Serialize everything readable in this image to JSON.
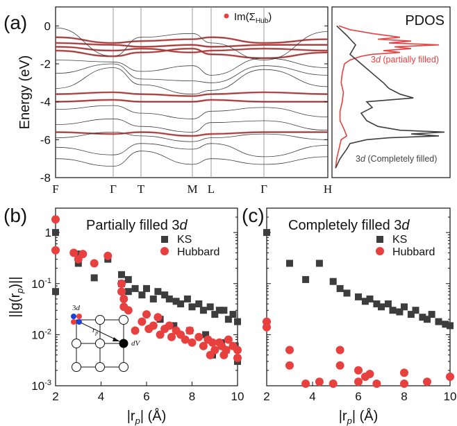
{
  "panel_labels": {
    "a": "(a)",
    "b": "(b)",
    "c": "(c)"
  },
  "colors": {
    "ks": "#3d3d3d",
    "hub": "#e8403e",
    "axis": "#111111",
    "grid": "#9a9a9a"
  },
  "chart_data": [
    {
      "type": "line",
      "id": "band-structure",
      "ylabel": "Energy (eV)",
      "ylim": [
        -8,
        1
      ],
      "yticks": [
        0,
        -2,
        -4,
        -6,
        -8
      ],
      "kpoints": [
        "F",
        "Γ",
        "T",
        "M",
        "L",
        "Γ",
        "H"
      ],
      "legend": {
        "label_main": "Im(Σ",
        "label_sub": "Hub",
        "label_end": ")"
      },
      "series": [
        {
          "values": [
            -0.6,
            -0.9,
            -0.8,
            -0.7,
            -0.6,
            -0.9,
            -0.7
          ],
          "hub": 1
        },
        {
          "values": [
            -0.9,
            -1.0,
            -1.1,
            -1.0,
            -1.1,
            -1.0,
            -1.0
          ],
          "hub": 1
        },
        {
          "values": [
            -1.1,
            -1.3,
            -1.2,
            -1.4,
            -1.3,
            -1.2,
            -1.3
          ],
          "hub": 1
        },
        {
          "values": [
            -1.3,
            -1.6,
            -1.4,
            -1.2,
            -1.5,
            -1.7,
            -1.4
          ],
          "hub": 1
        },
        {
          "values": [
            -0.1,
            -1.6,
            -0.6,
            -0.4,
            -0.9,
            -1.8,
            -0.3
          ],
          "hub": 0
        },
        {
          "values": [
            -1.8,
            -1.9,
            -2.4,
            -2.1,
            -2.6,
            -1.7,
            -2.2
          ],
          "hub": 0
        },
        {
          "values": [
            -2.5,
            -2.0,
            -2.8,
            -2.9,
            -3.0,
            -2.1,
            -2.6
          ],
          "hub": 0
        },
        {
          "values": [
            -3.3,
            -2.2,
            -3.1,
            -3.6,
            -3.4,
            -2.3,
            -3.2
          ],
          "hub": 0
        },
        {
          "values": [
            -3.6,
            -3.5,
            -3.6,
            -3.7,
            -3.6,
            -3.5,
            -3.6
          ],
          "hub": 1
        },
        {
          "values": [
            -4.0,
            -3.9,
            -4.0,
            -4.0,
            -3.9,
            -4.0,
            -4.0
          ],
          "hub": 1
        },
        {
          "values": [
            -4.4,
            -4.2,
            -4.6,
            -4.9,
            -4.5,
            -4.3,
            -4.8
          ],
          "hub": 0
        },
        {
          "values": [
            -5.2,
            -4.9,
            -5.3,
            -5.6,
            -5.1,
            -5.0,
            -5.5
          ],
          "hub": 0
        },
        {
          "values": [
            -5.6,
            -5.7,
            -5.6,
            -5.8,
            -5.7,
            -5.6,
            -5.6
          ],
          "hub": 1
        },
        {
          "values": [
            -5.9,
            -5.6,
            -5.8,
            -6.1,
            -5.9,
            -5.7,
            -6.0
          ],
          "hub": 0
        },
        {
          "values": [
            -6.4,
            -6.8,
            -6.2,
            -6.5,
            -6.2,
            -6.9,
            -6.3
          ],
          "hub": 0
        },
        {
          "values": [
            -7.0,
            -7.4,
            -6.6,
            -7.3,
            -7.0,
            -7.3,
            -6.9
          ],
          "hub": 0
        }
      ]
    },
    {
      "type": "line",
      "id": "pdos",
      "title": "PDOS",
      "ylim": [
        -8,
        1
      ],
      "annotations": {
        "partial": {
          "label": "3",
          "italic": "d",
          "rest": " (partially filled)"
        },
        "complete": {
          "label": "3",
          "italic": "d",
          "rest": " (Completely filled)"
        }
      },
      "series": [
        {
          "name": "partially filled",
          "energy": [
            0.0,
            -0.2,
            -0.4,
            -0.6,
            -0.7,
            -0.8,
            -0.9,
            -1.0,
            -1.1,
            -1.2,
            -1.3,
            -1.4,
            -1.5,
            -1.6,
            -1.8,
            -2.0,
            -2.5,
            -3.0,
            -3.5,
            -4.0,
            -4.5,
            -5.0,
            -5.5,
            -5.8,
            -6.0,
            -6.5,
            -7.0,
            -7.5
          ],
          "dos": [
            0.05,
            0.15,
            0.35,
            0.6,
            0.4,
            0.7,
            0.5,
            0.95,
            0.55,
            0.7,
            0.45,
            0.6,
            0.35,
            0.25,
            0.15,
            0.1,
            0.08,
            0.07,
            0.09,
            0.08,
            0.06,
            0.06,
            0.1,
            0.12,
            0.07,
            0.05,
            0.03,
            0.02
          ]
        },
        {
          "name": "completely filled",
          "energy": [
            0.0,
            -0.5,
            -1.0,
            -1.5,
            -2.0,
            -2.5,
            -3.0,
            -3.3,
            -3.6,
            -3.8,
            -4.0,
            -4.3,
            -4.6,
            -5.0,
            -5.3,
            -5.5,
            -5.6,
            -5.7,
            -5.8,
            -5.9,
            -6.0,
            -6.2,
            -6.5,
            -7.0,
            -7.5
          ],
          "dos": [
            0.03,
            0.12,
            0.2,
            0.15,
            0.25,
            0.35,
            0.45,
            0.5,
            0.6,
            0.72,
            0.3,
            0.35,
            0.25,
            0.3,
            0.4,
            0.6,
            1.0,
            0.7,
            0.95,
            0.5,
            0.3,
            0.15,
            0.12,
            0.06,
            0.02
          ]
        }
      ]
    },
    {
      "type": "scatter",
      "id": "partially-filled",
      "title": "Partially filled 3",
      "title_italic": "d",
      "ylabel_text": "||g(r",
      "ylabel_sub": "p",
      "ylabel_end": ")||",
      "xlabel": "|r",
      "xlabel_sub": "p",
      "xlabel_end": "| (Å)",
      "xlim": [
        2,
        10
      ],
      "xticks": [
        2,
        4,
        6,
        8,
        10
      ],
      "ylim": [
        0.001,
        3
      ],
      "yscale": "log",
      "ytick_labels": [
        {
          "v": 1,
          "base": "1",
          "exp": ""
        },
        {
          "v": 0.1,
          "base": "10",
          "exp": "-1"
        },
        {
          "v": 0.01,
          "base": "10",
          "exp": "-2"
        },
        {
          "v": 0.001,
          "base": "10",
          "exp": "-3"
        }
      ],
      "inset": {
        "orbital_label": "3",
        "orbital_italic": "d",
        "vector_label": "r",
        "vector_sub": "p",
        "volume_label": "dV"
      },
      "series": [
        {
          "name": "KS",
          "x": [
            2.0,
            2.0,
            3.0,
            3.0,
            3.7,
            4.3,
            4.9,
            4.9,
            5.2,
            5.2,
            5.5,
            5.8,
            6.0,
            6.3,
            6.5,
            6.8,
            7.0,
            7.3,
            7.5,
            7.8,
            8.0,
            8.3,
            8.5,
            8.8,
            9.0,
            9.2,
            9.4,
            9.6,
            9.8,
            10.0,
            6.6,
            7.2,
            7.9,
            8.6,
            9.3,
            9.9,
            8.9,
            9.5,
            10.0
          ],
          "y": [
            1.0,
            0.07,
            0.38,
            0.25,
            0.13,
            0.3,
            0.15,
            0.1,
            0.12,
            0.07,
            0.08,
            0.06,
            0.08,
            0.05,
            0.07,
            0.06,
            0.05,
            0.045,
            0.04,
            0.05,
            0.035,
            0.04,
            0.03,
            0.035,
            0.025,
            0.03,
            0.03,
            0.02,
            0.025,
            0.018,
            0.02,
            0.015,
            0.012,
            0.01,
            0.007,
            0.006,
            0.004,
            0.005,
            0.003
          ]
        },
        {
          "name": "Hubbard",
          "x": [
            2.0,
            2.0,
            2.8,
            3.0,
            3.2,
            3.7,
            4.3,
            4.9,
            4.9,
            5.0,
            5.0,
            5.2,
            5.5,
            5.8,
            6.0,
            6.1,
            6.3,
            6.5,
            6.6,
            6.8,
            7.0,
            7.1,
            7.3,
            7.5,
            7.7,
            7.9,
            8.0,
            8.3,
            8.5,
            8.7,
            8.9,
            9.0,
            9.2,
            9.3,
            9.5,
            9.6,
            9.8,
            10.0,
            10.0,
            9.4,
            8.8
          ],
          "y": [
            1.8,
            0.45,
            0.4,
            0.3,
            0.38,
            0.25,
            0.35,
            0.1,
            0.07,
            0.05,
            0.035,
            0.03,
            0.012,
            0.018,
            0.025,
            0.013,
            0.015,
            0.022,
            0.01,
            0.013,
            0.015,
            0.009,
            0.012,
            0.01,
            0.008,
            0.012,
            0.007,
            0.009,
            0.006,
            0.008,
            0.007,
            0.005,
            0.007,
            0.006,
            0.005,
            0.008,
            0.006,
            0.005,
            0.0035,
            0.004,
            0.004
          ]
        }
      ],
      "legend": [
        "KS",
        "Hubbard"
      ]
    },
    {
      "type": "scatter",
      "id": "completely-filled",
      "title": "Completely filled 3",
      "title_italic": "d",
      "xlabel": "|r",
      "xlabel_sub": "p",
      "xlabel_end": "| (Å)",
      "xlim": [
        2,
        10
      ],
      "xticks": [
        2,
        4,
        6,
        8,
        10
      ],
      "ylim": [
        0.001,
        3
      ],
      "yscale": "log",
      "series": [
        {
          "name": "KS",
          "x": [
            2.0,
            3.0,
            3.7,
            4.3,
            4.9,
            5.2,
            5.5,
            6.0,
            6.3,
            6.5,
            6.8,
            7.0,
            7.3,
            7.5,
            7.8,
            8.0,
            8.3,
            8.5,
            8.8,
            9.0,
            9.2,
            9.5,
            9.8,
            10.0
          ],
          "y": [
            1.0,
            0.25,
            0.12,
            0.25,
            0.11,
            0.08,
            0.065,
            0.055,
            0.045,
            0.05,
            0.04,
            0.035,
            0.04,
            0.03,
            0.028,
            0.035,
            0.025,
            0.03,
            0.022,
            0.02,
            0.025,
            0.018,
            0.016,
            0.015
          ]
        },
        {
          "name": "Hubbard",
          "x": [
            2.0,
            2.0,
            3.0,
            3.0,
            3.7,
            4.3,
            4.9,
            5.2,
            5.2,
            6.0,
            6.0,
            6.3,
            6.5,
            6.8,
            8.0,
            8.0,
            9.0,
            10.0
          ],
          "y": [
            0.018,
            0.014,
            0.005,
            0.0025,
            0.0011,
            0.0012,
            0.0011,
            0.005,
            0.0025,
            0.002,
            0.0012,
            0.0015,
            0.0017,
            0.0011,
            0.0018,
            0.0011,
            0.0012,
            0.0015
          ]
        }
      ],
      "legend": [
        "KS",
        "Hubbard"
      ]
    }
  ]
}
